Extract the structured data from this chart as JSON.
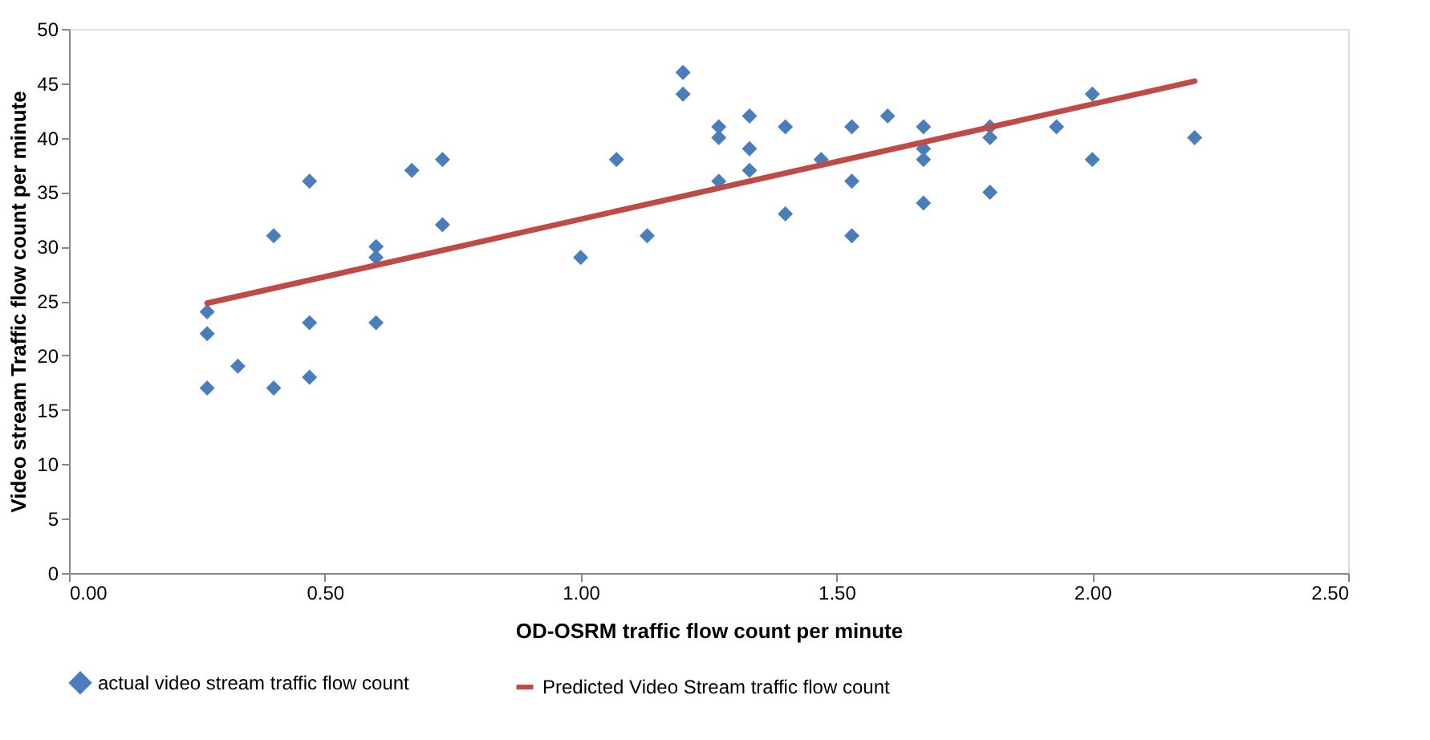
{
  "chart_data": {
    "type": "scatter",
    "xlabel": "OD-OSRM traffic flow count per minute",
    "ylabel": "Video stream Traffic flow count per minute",
    "xlim": [
      0,
      2.5
    ],
    "ylim": [
      0,
      50
    ],
    "xticks": [
      {
        "value": 0,
        "label": "0.00"
      },
      {
        "value": 0.5,
        "label": "0.50"
      },
      {
        "value": 1,
        "label": "1.00"
      },
      {
        "value": 1.5,
        "label": "1.50"
      },
      {
        "value": 2,
        "label": "2.00"
      },
      {
        "value": 2.5,
        "label": "2.50"
      }
    ],
    "yticks": [
      0,
      5,
      10,
      15,
      20,
      25,
      30,
      35,
      40,
      45,
      50
    ],
    "grid": false,
    "legend": "bottom",
    "series": [
      {
        "name": "actual video stream traffic flow count",
        "marker": "diamond",
        "color": "#4a7ebb",
        "x": [
          0.27,
          0.27,
          0.27,
          0.33,
          0.4,
          0.4,
          0.47,
          0.47,
          0.47,
          0.6,
          0.6,
          0.6,
          0.67,
          0.73,
          0.73,
          1.0,
          1.07,
          1.13,
          1.2,
          1.2,
          1.27,
          1.27,
          1.27,
          1.33,
          1.33,
          1.33,
          1.4,
          1.4,
          1.47,
          1.53,
          1.53,
          1.53,
          1.6,
          1.67,
          1.67,
          1.67,
          1.67,
          1.8,
          1.8,
          1.8,
          1.93,
          2.0,
          2.0,
          2.2
        ],
        "values": [
          24,
          22,
          17,
          19,
          31,
          17,
          36,
          23,
          18,
          30,
          29,
          23,
          37,
          38,
          32,
          29,
          38,
          31,
          46,
          44,
          41,
          40,
          36,
          42,
          39,
          37,
          41,
          33,
          38,
          41,
          36,
          31,
          42,
          41,
          39,
          38,
          34,
          41,
          40,
          35,
          41,
          44,
          38,
          40
        ]
      },
      {
        "name": "Predicted Video Stream traffic flow count",
        "type": "line",
        "line_style": "solid",
        "color": "#be4b48",
        "x": [
          0.27,
          2.2
        ],
        "values": [
          24.8,
          45.2
        ]
      }
    ]
  }
}
